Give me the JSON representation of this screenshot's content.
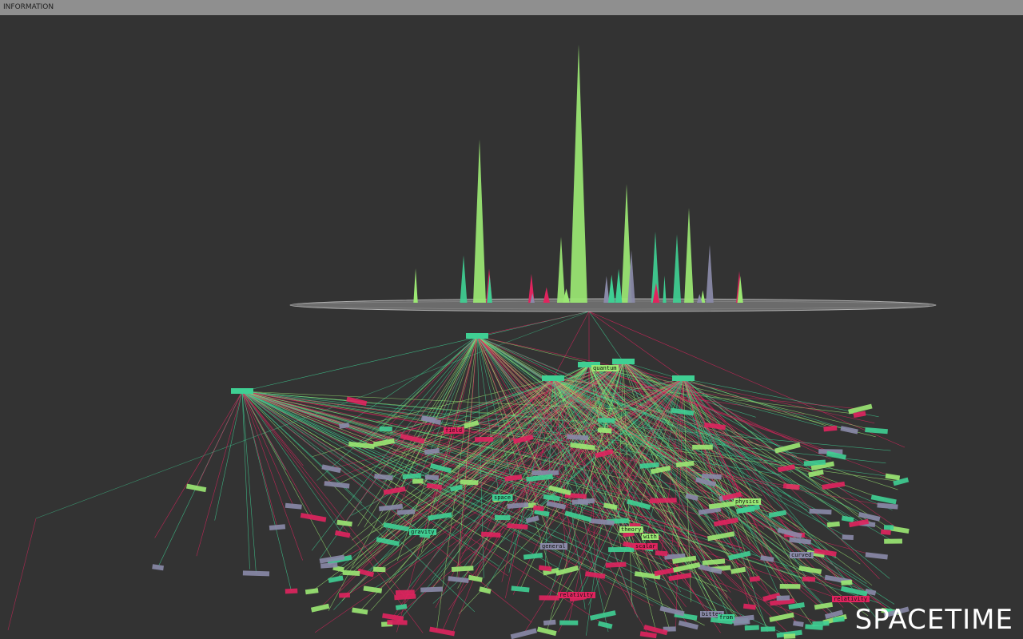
{
  "window": {
    "title": "INFORMATION"
  },
  "search_word": "SPACETIME",
  "colors": {
    "background": "#333333",
    "title_bar": "#8f8f8f",
    "lime": "#9be873",
    "teal": "#3fcf93",
    "crimson": "#e0245e",
    "slate": "#8a8aa8",
    "disc": "#a0a0a0"
  },
  "spikes": [
    {
      "color": "lime",
      "height": 0.62
    },
    {
      "color": "lime",
      "height": 0.98
    },
    {
      "color": "lime",
      "height": 0.45
    },
    {
      "color": "lime",
      "height": 0.36
    },
    {
      "color": "teal",
      "height": 0.26
    },
    {
      "color": "teal",
      "height": 0.27
    },
    {
      "color": "slate",
      "height": 0.2
    },
    {
      "color": "slate",
      "height": 0.22
    },
    {
      "color": "crimson",
      "height": 0.13
    },
    {
      "color": "crimson",
      "height": 0.12
    },
    {
      "color": "lime",
      "height": 0.25
    },
    {
      "color": "teal",
      "height": 0.18
    }
  ],
  "labels": [
    {
      "text": "theory",
      "color": "lime"
    },
    {
      "text": "with",
      "color": "lime"
    },
    {
      "text": "scalar",
      "color": "crimson"
    },
    {
      "text": "relativity",
      "color": "crimson"
    },
    {
      "text": "relativity",
      "color": "crimson"
    },
    {
      "text": "general",
      "color": "slate"
    },
    {
      "text": "bitter",
      "color": "slate"
    },
    {
      "text": "from",
      "color": "teal"
    },
    {
      "text": "quantum",
      "color": "lime"
    },
    {
      "text": "physics",
      "color": "lime"
    },
    {
      "text": "gravity",
      "color": "teal"
    },
    {
      "text": "field",
      "color": "crimson"
    },
    {
      "text": "curved",
      "color": "slate"
    },
    {
      "text": "space",
      "color": "teal"
    }
  ]
}
